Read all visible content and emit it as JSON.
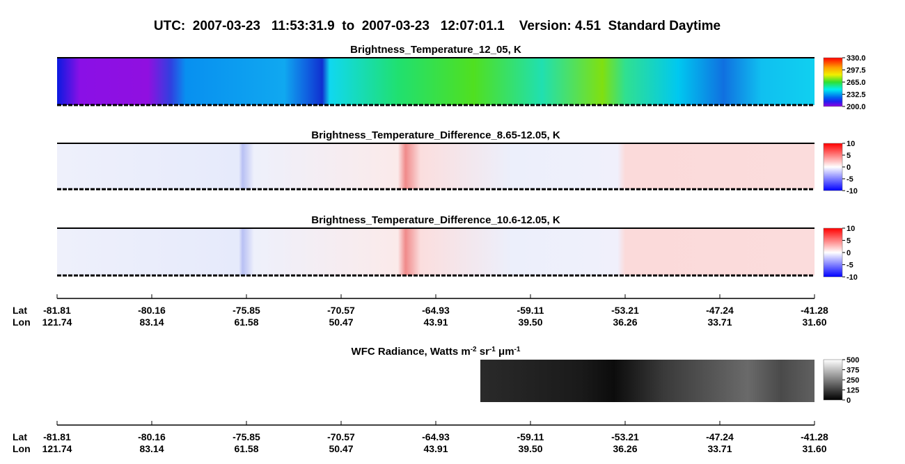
{
  "title": "UTC:  2007-03-23   11:53:31.9  to  2007-03-23   12:07:01.1    Version: 4.51  Standard Daytime",
  "panels": [
    {
      "title": "Brightness_Temperature_12_05, K",
      "colorbar_ticks": [
        "330.0",
        "297.5",
        "265.0",
        "232.5",
        "200.0"
      ]
    },
    {
      "title": "Brightness_Temperature_Difference_8.65-12.05, K",
      "colorbar_ticks": [
        "10",
        "5",
        "0",
        "-5",
        "-10"
      ]
    },
    {
      "title": "Brightness_Temperature_Difference_10.6-12.05, K",
      "colorbar_ticks": [
        "10",
        "5",
        "0",
        "-5",
        "-10"
      ]
    }
  ],
  "axes": [
    {
      "lat_label": "Lat",
      "lon_label": "Lon",
      "lat": [
        "-81.81",
        "-80.16",
        "-75.85",
        "-70.57",
        "-64.93",
        "-59.11",
        "-53.21",
        "-47.24",
        "-41.28"
      ],
      "lon": [
        "121.74",
        "83.14",
        "61.58",
        "50.47",
        "43.91",
        "39.50",
        "36.26",
        "33.71",
        "31.60"
      ]
    },
    {
      "lat_label": "Lat",
      "lon_label": "Lon",
      "lat": [
        "-81.81",
        "-80.16",
        "-75.85",
        "-70.57",
        "-64.93",
        "-59.11",
        "-53.21",
        "-47.24",
        "-41.28"
      ],
      "lon": [
        "121.74",
        "83.14",
        "61.58",
        "50.47",
        "43.91",
        "39.50",
        "36.26",
        "33.71",
        "31.60"
      ]
    }
  ],
  "wfc": {
    "title_parts": [
      "WFC Radiance, Watts m",
      "-2",
      " sr",
      "-1",
      " μm",
      "-1"
    ],
    "colorbar_ticks": [
      "500",
      "375",
      "250",
      "125",
      "0"
    ]
  }
}
